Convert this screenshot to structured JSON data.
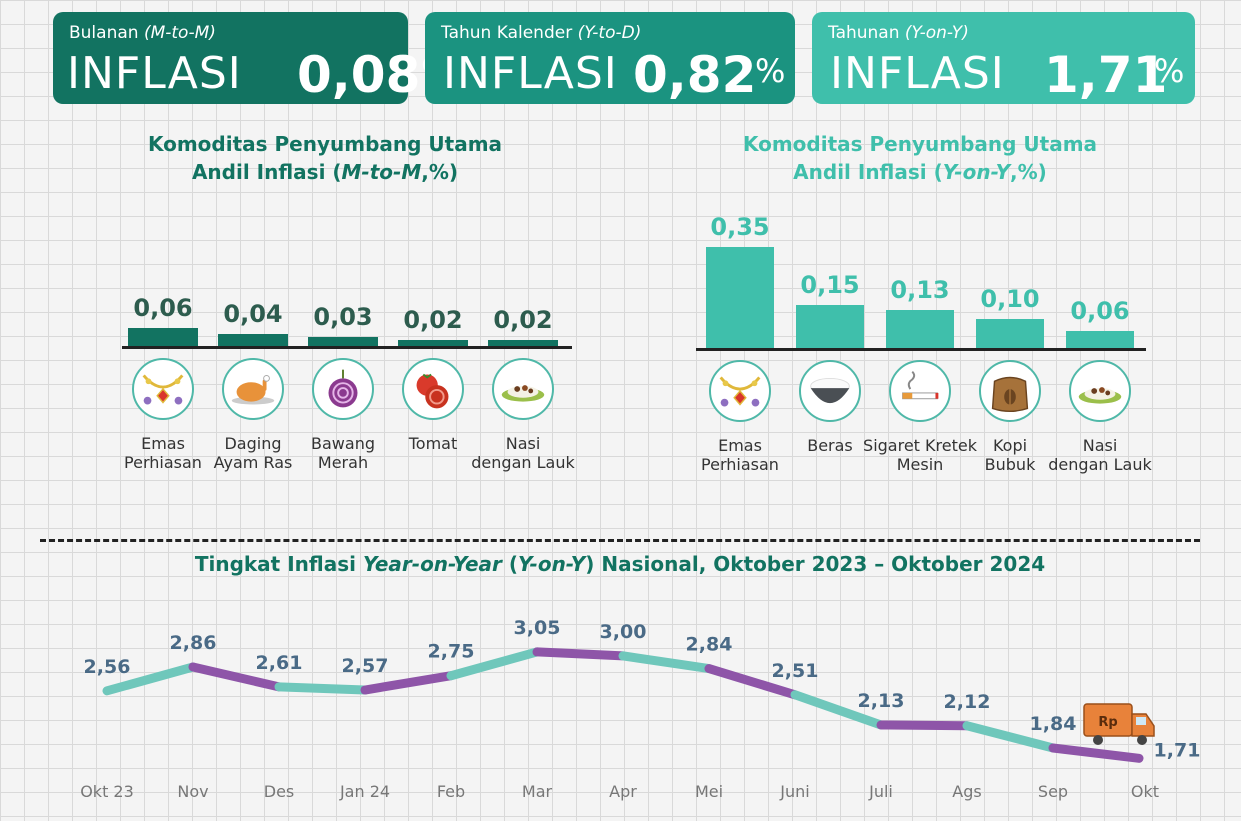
{
  "cards": [
    {
      "period": "Bulanan",
      "period_code": "(M-to-M)",
      "label": "INFLASI",
      "value": "0,08",
      "unit": "%",
      "color": "#127361"
    },
    {
      "period": "Tahun Kalender",
      "period_code": "(Y-to-D)",
      "label": "INFLASI",
      "value": "0,82",
      "unit": "%",
      "color": "#1b9380"
    },
    {
      "period": "Tahunan",
      "period_code": "(Y-on-Y)",
      "label": "INFLASI",
      "value": "1,71",
      "unit": "%",
      "color": "#3fbfab"
    }
  ],
  "mtm_section": {
    "title_line1": "Komoditas Penyumbang Utama",
    "title_line2_prefix": "Andil Inflasi (",
    "title_line2_italic": "M-to-M",
    "title_line2_suffix": ",%)",
    "color": "#127361"
  },
  "yoy_section": {
    "title_line1": "Komoditas Penyumbang Utama",
    "title_line2_prefix": "Andil Inflasi (",
    "title_line2_italic": "Y-on-Y",
    "title_line2_suffix": ",%)",
    "color": "#3fbfab"
  },
  "line_section": {
    "title_prefix": "Tingkat Inflasi ",
    "title_italic1": "Year-on-Year",
    "title_mid": " (",
    "title_italic2": "Y-on-Y",
    "title_suffix": ") Nasional, Oktober 2023 – Oktober 2024",
    "color": "#127361"
  },
  "chart_data": [
    {
      "type": "bar",
      "categories": [
        "Emas Perhiasan",
        "Daging Ayam Ras",
        "Bawang Merah",
        "Tomat",
        "Nasi dengan Lauk"
      ],
      "category_lines": [
        [
          "Emas",
          "Perhiasan"
        ],
        [
          "Daging",
          "Ayam Ras"
        ],
        [
          "Bawang",
          "Merah"
        ],
        [
          "Tomat"
        ],
        [
          "Nasi",
          "dengan Lauk"
        ]
      ],
      "values": [
        0.06,
        0.04,
        0.03,
        0.02,
        0.02
      ],
      "value_labels": [
        "0,06",
        "0,04",
        "0,03",
        "0,02",
        "0,02"
      ],
      "icons": [
        "jewelry-icon",
        "roast-chicken-icon",
        "red-onion-icon",
        "tomato-icon",
        "rice-dish-icon"
      ],
      "bar_color": "#127361",
      "title": "Komoditas Penyumbang Utama Andil Inflasi (M-to-M,%)",
      "xlabel": "",
      "ylabel": ""
    },
    {
      "type": "bar",
      "categories": [
        "Emas Perhiasan",
        "Beras",
        "Sigaret Kretek Mesin",
        "Kopi Bubuk",
        "Nasi dengan Lauk"
      ],
      "category_lines": [
        [
          "Emas",
          "Perhiasan"
        ],
        [
          "Beras"
        ],
        [
          "Sigaret Kretek",
          "Mesin"
        ],
        [
          "Kopi",
          "Bubuk"
        ],
        [
          "Nasi",
          "dengan Lauk"
        ]
      ],
      "values": [
        0.35,
        0.15,
        0.13,
        0.1,
        0.06
      ],
      "value_labels": [
        "0,35",
        "0,15",
        "0,13",
        "0,10",
        "0,06"
      ],
      "icons": [
        "jewelry-icon",
        "rice-bowl-icon",
        "cigarette-icon",
        "coffee-sack-icon",
        "rice-dish-icon"
      ],
      "bar_color": "#3fbfab",
      "title": "Komoditas Penyumbang Utama Andil Inflasi (Y-on-Y,%)",
      "xlabel": "",
      "ylabel": ""
    },
    {
      "type": "line",
      "categories": [
        "Okt 23",
        "Nov",
        "Des",
        "Jan 24",
        "Feb",
        "Mar",
        "Apr",
        "Mei",
        "Juni",
        "Juli",
        "Ags",
        "Sep",
        "Okt"
      ],
      "values": [
        2.56,
        2.86,
        2.61,
        2.57,
        2.75,
        3.05,
        3.0,
        2.84,
        2.51,
        2.13,
        2.12,
        1.84,
        1.71
      ],
      "value_labels": [
        "2,56",
        "2,86",
        "2,61",
        "2,57",
        "2,75",
        "3,05",
        "3,00",
        "2,84",
        "2,51",
        "2,13",
        "2,12",
        "1,84",
        "1,71"
      ],
      "segment_colors": [
        "#6fc7bb",
        "#8e55a8"
      ],
      "title": "Tingkat Inflasi Year-on-Year (Y-on-Y) Nasional, Oktober 2023 – Oktober 2024",
      "xlabel": "",
      "ylabel": "",
      "truck_label": "Rp"
    }
  ]
}
